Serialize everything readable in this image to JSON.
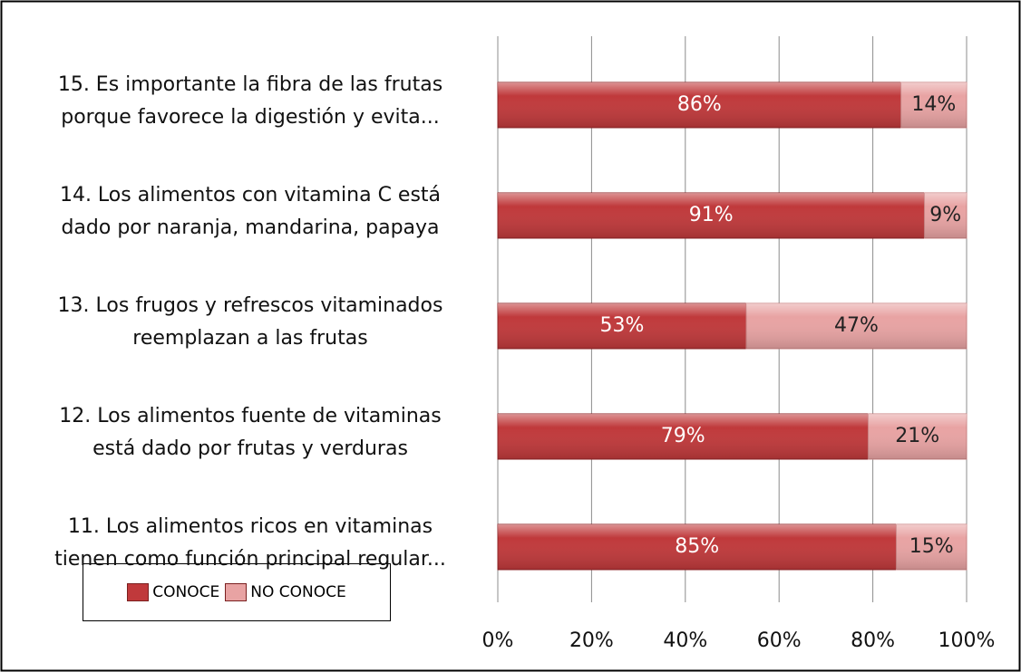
{
  "chart_data": {
    "type": "stacked_barh",
    "categories": [
      "15. Es importante la fibra de las frutas\nporque favorece la digestión y evita...",
      "14. Los alimentos con vitamina C está\ndado por naranja, mandarina, papaya",
      "13. Los frugos y refrescos vitaminados\nreemplazan a las frutas",
      "12. Los alimentos fuente de vitaminas\nestá dado por frutas y verduras",
      "11. Los alimentos  ricos en vitaminas\ntienen como función principal regular..."
    ],
    "series": [
      {
        "name": "CONOCE",
        "color": "#c0393b",
        "values": [
          86,
          91,
          53,
          79,
          85
        ],
        "value_labels": [
          "86%",
          "91%",
          "53%",
          "79%",
          "85%"
        ]
      },
      {
        "name": "NO CONOCE",
        "color": "#e8a3a3",
        "values": [
          14,
          9,
          47,
          21,
          15
        ],
        "value_labels": [
          "14%",
          "9%",
          "47%",
          "21%",
          "15%"
        ]
      }
    ],
    "xlim": [
      0,
      100
    ],
    "xticks": [
      {
        "value": 0,
        "label": "0%"
      },
      {
        "value": 20,
        "label": "20%"
      },
      {
        "value": 40,
        "label": "40%"
      },
      {
        "value": 60,
        "label": "60%"
      },
      {
        "value": 80,
        "label": "80%"
      },
      {
        "value": 100,
        "label": "100%"
      }
    ],
    "grid": true
  }
}
